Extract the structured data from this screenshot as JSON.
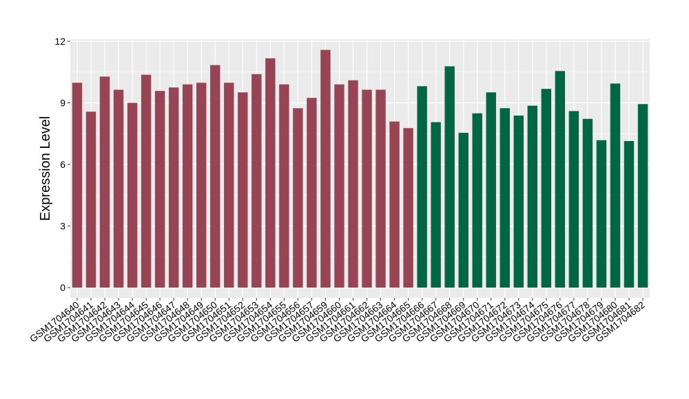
{
  "chart_data": {
    "type": "bar",
    "title": "",
    "xlabel": "",
    "ylabel": "Expression Level",
    "ylim": [
      -0.5,
      12.1
    ],
    "yticks": [
      0,
      3,
      6,
      9,
      12
    ],
    "grid": true,
    "colors": {
      "group1": "#994455",
      "group2": "#006644",
      "panel": "#ebebeb",
      "gridline": "#ffffff"
    },
    "categories": [
      "GSM1704640",
      "GSM1704641",
      "GSM1704642",
      "GSM1704643",
      "GSM1704644",
      "GSM1704645",
      "GSM1704646",
      "GSM1704647",
      "GSM1704648",
      "GSM1704649",
      "GSM1704650",
      "GSM1704651",
      "GSM1704652",
      "GSM1704653",
      "GSM1704654",
      "GSM1704655",
      "GSM1704656",
      "GSM1704657",
      "GSM1704659",
      "GSM1704660",
      "GSM1704661",
      "GSM1704662",
      "GSM1704663",
      "GSM1704664",
      "GSM1704665",
      "GSM1704666",
      "GSM1704667",
      "GSM1704668",
      "GSM1704669",
      "GSM1704670",
      "GSM1704671",
      "GSM1704672",
      "GSM1704673",
      "GSM1704674",
      "GSM1704675",
      "GSM1704676",
      "GSM1704677",
      "GSM1704678",
      "GSM1704679",
      "GSM1704680",
      "GSM1704681",
      "GSM1704682"
    ],
    "values": [
      9.98,
      8.57,
      10.28,
      9.64,
      9.0,
      10.37,
      9.58,
      9.75,
      9.9,
      9.98,
      10.84,
      9.98,
      9.51,
      10.4,
      11.17,
      9.9,
      8.74,
      9.24,
      11.58,
      9.9,
      10.1,
      9.64,
      9.64,
      8.09,
      7.77,
      9.81,
      8.06,
      10.78,
      7.54,
      8.49,
      9.51,
      8.74,
      8.38,
      8.86,
      9.68,
      10.55,
      8.6,
      8.22,
      7.18,
      9.94,
      7.14,
      8.94
    ],
    "group": [
      1,
      1,
      1,
      1,
      1,
      1,
      1,
      1,
      1,
      1,
      1,
      1,
      1,
      1,
      1,
      1,
      1,
      1,
      1,
      1,
      1,
      1,
      1,
      1,
      1,
      2,
      2,
      2,
      2,
      2,
      2,
      2,
      2,
      2,
      2,
      2,
      2,
      2,
      2,
      2,
      2,
      2
    ]
  }
}
